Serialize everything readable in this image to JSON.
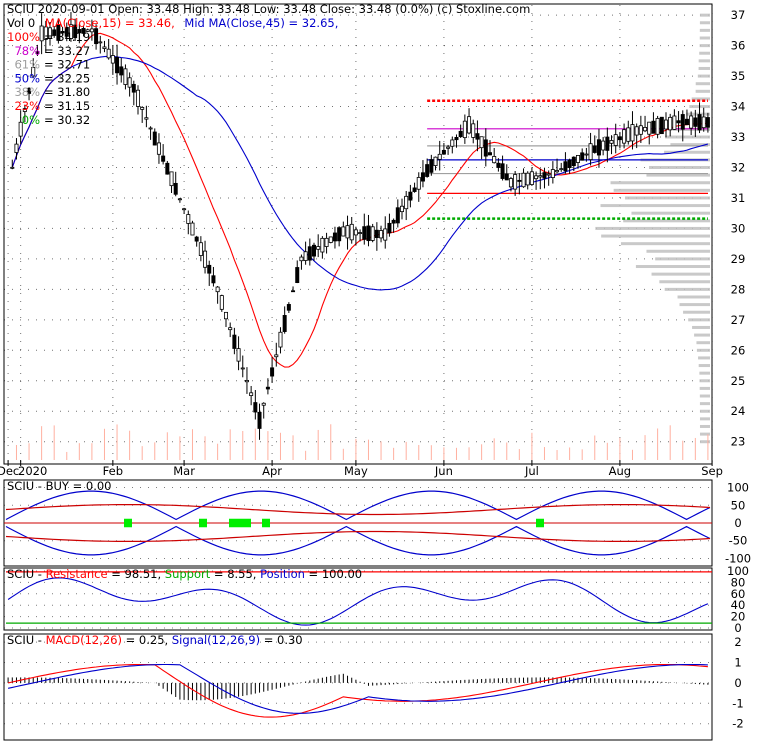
{
  "colors": {
    "up": "#00a000",
    "down": "#ff0000",
    "candle": "#000000",
    "ma15": "#ff0000",
    "ma45": "#0000cc",
    "axis_text": "#000000",
    "fib_100": "#ff0000",
    "fib_78": "#cc00cc",
    "fib_61": "#a0a0a0",
    "fib_50": "#0000cc",
    "fib_38": "#a0a0a0",
    "fib_23": "#ff0000",
    "fib_0": "#00aa00",
    "volume": "#ffb0a0",
    "profile": "#c0c0c0"
  },
  "header": {
    "line1": "SCIU  2020-09-01 Open: 33.48  High: 33.48  Low: 33.48  Close: 33.48 (0.0%)  (c) Stoxline.com",
    "vol": "Vol 0",
    "ma15": "MA(Close,15) = 33.46,",
    "ma45": "Mid MA(Close,45) = 32.65,"
  },
  "fib_labels": [
    {
      "pct": "100%",
      "value": "= 34.19",
      "color": "#ff0000"
    },
    {
      "pct": "78%",
      "value": "= 33.27",
      "color": "#cc00cc"
    },
    {
      "pct": "61%",
      "value": "= 32.71",
      "color": "#a0a0a0"
    },
    {
      "pct": "50%",
      "value": "= 32.25",
      "color": "#0000cc"
    },
    {
      "pct": "38%",
      "value": "= 31.80",
      "color": "#a0a0a0"
    },
    {
      "pct": "23%",
      "value": "= 31.15",
      "color": "#ff0000"
    },
    {
      "pct": "0%",
      "value": "= 30.32",
      "color": "#00aa00"
    }
  ],
  "chart_data": [
    {
      "type": "candlestick",
      "ticker": "SCIU",
      "ylim": [
        22.4,
        37.3
      ],
      "y_ticks": [
        23,
        24,
        25,
        26,
        27,
        28,
        29,
        30,
        31,
        32,
        33,
        34,
        35,
        36,
        37
      ],
      "x_labels": [
        "Dec",
        "2020",
        "Feb",
        "Mar",
        "Apr",
        "May",
        "Jun",
        "Jul",
        "Aug",
        "Sep"
      ],
      "x_label_index": [
        0,
        3,
        25,
        42,
        63,
        83,
        104,
        125,
        146,
        168
      ],
      "n_bars": 168,
      "candles_sample": [
        {
          "d": 1,
          "o": 31.9,
          "h": 32.1,
          "l": 31.7,
          "c": 32.0
        },
        {
          "d": 8,
          "o": 36.3,
          "h": 36.6,
          "l": 36.0,
          "c": 36.4
        },
        {
          "d": 20,
          "o": 36.3,
          "h": 36.6,
          "l": 35.9,
          "c": 36.5
        },
        {
          "d": 30,
          "o": 35.0,
          "h": 35.2,
          "l": 34.4,
          "c": 34.6
        },
        {
          "d": 40,
          "o": 32.2,
          "h": 32.8,
          "l": 31.0,
          "c": 31.3
        },
        {
          "d": 50,
          "o": 29.6,
          "h": 30.0,
          "l": 27.5,
          "c": 28.0
        },
        {
          "d": 60,
          "o": 23.9,
          "h": 24.8,
          "l": 22.6,
          "c": 23.7
        },
        {
          "d": 70,
          "o": 28.0,
          "h": 29.2,
          "l": 27.4,
          "c": 29.0
        },
        {
          "d": 80,
          "o": 29.5,
          "h": 30.1,
          "l": 29.0,
          "c": 29.9
        },
        {
          "d": 90,
          "o": 30.4,
          "h": 30.6,
          "l": 29.6,
          "c": 29.8
        },
        {
          "d": 100,
          "o": 31.3,
          "h": 32.0,
          "l": 31.0,
          "c": 31.9
        },
        {
          "d": 110,
          "o": 34.0,
          "h": 34.2,
          "l": 33.2,
          "c": 33.4
        },
        {
          "d": 120,
          "o": 31.8,
          "h": 32.2,
          "l": 31.2,
          "c": 31.5
        },
        {
          "d": 130,
          "o": 31.4,
          "h": 31.9,
          "l": 31.1,
          "c": 31.8
        },
        {
          "d": 140,
          "o": 32.3,
          "h": 32.8,
          "l": 32.0,
          "c": 32.6
        },
        {
          "d": 150,
          "o": 33.0,
          "h": 33.3,
          "l": 32.8,
          "c": 33.2
        },
        {
          "d": 160,
          "o": 33.4,
          "h": 33.6,
          "l": 33.2,
          "c": 33.5
        },
        {
          "d": 167,
          "o": 33.48,
          "h": 33.48,
          "l": 33.48,
          "c": 33.48
        }
      ],
      "ma15_label": "MA(Close,15) = 33.46",
      "ma45_label": "Mid MA(Close,45) = 32.65",
      "fib_levels": [
        34.19,
        33.27,
        32.71,
        32.25,
        31.8,
        31.15,
        30.32
      ]
    },
    {
      "type": "line",
      "label": "SCIU - BUY = 0.00",
      "ylim": [
        -110,
        110
      ],
      "y_ticks": [
        100,
        50,
        0,
        -50,
        -100
      ]
    },
    {
      "type": "line",
      "label_parts": [
        "SCIU - ",
        "Resistance",
        " = 98.51, ",
        "Support",
        " = 8.55, ",
        "Position",
        " = 100.00"
      ],
      "ylim": [
        0,
        100
      ],
      "y_ticks": [
        100,
        80,
        60,
        40,
        20,
        0
      ]
    },
    {
      "type": "line",
      "label_parts": [
        "SCIU - ",
        "MACD(12,26)",
        " = 0.25, ",
        "Signal(12,26,9)",
        " = 0.30"
      ],
      "ylim": [
        -2.7,
        2.2
      ],
      "y_ticks": [
        2,
        1,
        0,
        -1,
        -2
      ]
    }
  ]
}
